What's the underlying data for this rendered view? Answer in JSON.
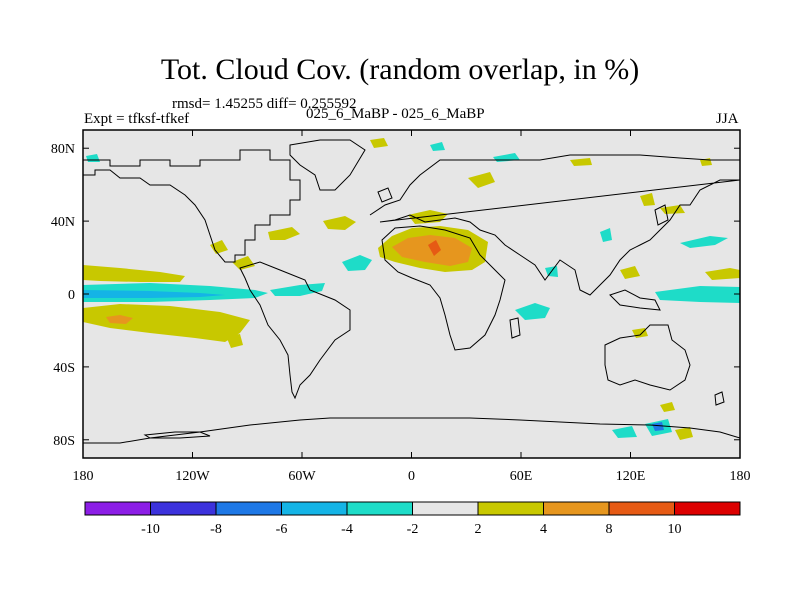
{
  "title": "Tot. Cloud Cov. (random overlap, in %)",
  "stats_line": "rmsd= 1.45255  diff= 0.255592",
  "experiment": "Expt = tfksf-tfkef",
  "comparison": "025_6_MaBP - 025_6_MaBP",
  "season": "JJA",
  "colors": {
    "background": "#e6e6e6",
    "positive_2_4": "#c8c800",
    "positive_4_8": "#e6961e",
    "positive_8_10": "#e65a14",
    "negative_2_4": "#1edcc8",
    "negative_4_6": "#14b4e6"
  },
  "chart_data": {
    "type": "heatmap",
    "title": "Tot. Cloud Cov. (random overlap, in %)",
    "x_ticks": [
      "180",
      "120W",
      "60W",
      "0",
      "60E",
      "120E",
      "180"
    ],
    "x_tick_values": [
      -180,
      -120,
      -60,
      0,
      60,
      120,
      180
    ],
    "y_ticks": [
      "80N",
      "40N",
      "0",
      "40S",
      "80S"
    ],
    "y_tick_values": [
      80,
      40,
      0,
      -40,
      -80
    ],
    "xlim": [
      -180,
      180
    ],
    "ylim": [
      -90,
      90
    ],
    "colorbar": {
      "labels": [
        "-10",
        "-8",
        "-6",
        "-4",
        "-2",
        "2",
        "4",
        "8",
        "10"
      ],
      "boundaries": [
        -10,
        -8,
        -6,
        -4,
        -2,
        2,
        4,
        8,
        10
      ],
      "colors": [
        "#8c1ee6",
        "#3c32dc",
        "#1e78e6",
        "#14b4e6",
        "#1edcc8",
        "#e6e6e6",
        "#c8c800",
        "#e6961e",
        "#e65a14",
        "#dc0000"
      ]
    }
  }
}
